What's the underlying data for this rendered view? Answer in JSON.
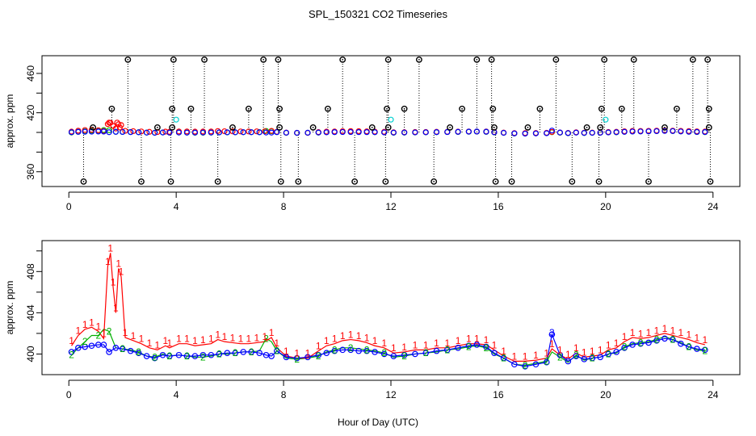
{
  "chart_data": {
    "type": "line",
    "title": "SPL_150321  CO2 Timeseries",
    "xlabel": "Hour of Day (UTC)",
    "colors": {
      "outlier": "#000000",
      "series1": "#ff0000",
      "series2": "#00b000",
      "series3": "#0000ff",
      "series4": "#00d0d0"
    },
    "panels": [
      {
        "ylabel": "approx. ppm",
        "xlim": [
          -1,
          25
        ],
        "ylim": [
          345,
          478
        ],
        "xticks": [
          0,
          4,
          8,
          12,
          16,
          20,
          24
        ],
        "yticks": [
          360,
          380,
          400,
          420,
          440,
          460
        ],
        "ytick_labels": [
          360,
          420,
          460
        ],
        "outlier_high_x": [
          2.2,
          3.9,
          5.05,
          7.25,
          7.8,
          10.2,
          11.9,
          13.05,
          15.2,
          15.75,
          18.15,
          19.95,
          21.05,
          23.25,
          23.8
        ],
        "outlier_high_y": 474,
        "outlier_mid_x": [
          1.6,
          3.85,
          4.55,
          6.7,
          7.85,
          9.65,
          11.85,
          12.5,
          14.65,
          15.8,
          17.55,
          19.85,
          20.6,
          22.65,
          23.85
        ],
        "outlier_mid_y": 424,
        "outlier_low_x": [
          0.55,
          2.7,
          3.8,
          5.55,
          7.9,
          8.55,
          10.65,
          11.8,
          13.6,
          15.9,
          16.5,
          18.75,
          19.75,
          21.6,
          23.9
        ],
        "outlier_low_y": 350,
        "outlier_near_x": [
          0.9,
          3.3,
          3.85,
          6.1,
          7.85,
          9.1,
          11.3,
          11.9,
          14.2,
          15.85,
          17.1,
          19.3,
          19.8,
          22.2,
          23.85
        ],
        "outlier_near_y": 405,
        "cyan_points": [
          {
            "x": 4.0,
            "y": 413
          },
          {
            "x": 12.0,
            "y": 413
          },
          {
            "x": 20.0,
            "y": 413
          }
        ],
        "red_extra": [
          {
            "x": 1.5,
            "y": 410
          },
          {
            "x": 1.8,
            "y": 410
          },
          {
            "x": 1.9,
            "y": 405
          }
        ]
      },
      {
        "ylabel": "approx. ppm",
        "xlim": [
          -1,
          25
        ],
        "ylim": [
          398,
          411
        ],
        "xticks": [
          0,
          4,
          8,
          12,
          16,
          20,
          24
        ],
        "yticks": [
          400,
          402,
          404,
          406,
          408,
          410
        ],
        "ytick_labels": [
          400,
          404,
          408
        ],
        "marker_label_1": "1",
        "marker_label_2": "2",
        "marker_label_3": "3"
      }
    ],
    "series": [
      {
        "name": "1",
        "x": [
          0.1,
          0.35,
          0.6,
          0.85,
          1.1,
          1.3,
          1.45,
          1.55,
          1.65,
          1.75,
          1.85,
          1.95,
          2.1,
          2.4,
          2.7,
          3.0,
          3.3,
          3.6,
          3.75,
          4.1,
          4.4,
          4.7,
          5.0,
          5.3,
          5.55,
          5.8,
          6.1,
          6.4,
          6.7,
          7.0,
          7.3,
          7.55,
          7.75,
          8.1,
          8.5,
          8.9,
          9.3,
          9.6,
          9.9,
          10.2,
          10.5,
          10.8,
          11.1,
          11.4,
          11.75,
          12.1,
          12.5,
          12.9,
          13.3,
          13.7,
          14.1,
          14.5,
          14.9,
          15.2,
          15.55,
          15.85,
          16.2,
          16.6,
          17.0,
          17.4,
          17.8,
          18.0,
          18.3,
          18.6,
          18.9,
          19.2,
          19.5,
          19.8,
          20.1,
          20.4,
          20.7,
          21.0,
          21.3,
          21.6,
          21.9,
          22.2,
          22.5,
          22.8,
          23.1,
          23.4,
          23.7
        ],
        "values": [
          400.8,
          401.8,
          402.4,
          402.6,
          402.2,
          401.5,
          408.5,
          409.8,
          406.5,
          404.0,
          408.3,
          407.5,
          401.6,
          401.3,
          401.0,
          400.6,
          400.4,
          400.8,
          400.6,
          401.0,
          401.0,
          400.8,
          400.9,
          401.0,
          401.4,
          401.2,
          401.1,
          401.0,
          401.0,
          401.1,
          401.2,
          401.6,
          400.6,
          399.8,
          399.6,
          399.6,
          400.3,
          400.8,
          401.0,
          401.3,
          401.4,
          401.3,
          401.1,
          400.8,
          400.6,
          400.1,
          400.2,
          400.4,
          400.4,
          400.6,
          400.6,
          400.8,
          401.0,
          401.0,
          400.9,
          400.4,
          399.8,
          399.3,
          399.3,
          399.4,
          399.6,
          400.5,
          399.9,
          399.5,
          400.1,
          399.7,
          399.8,
          399.9,
          400.4,
          400.6,
          401.2,
          401.6,
          401.5,
          401.6,
          401.8,
          402.0,
          401.8,
          401.6,
          401.4,
          401.1,
          400.9
        ]
      },
      {
        "name": "2",
        "x": [
          0.1,
          0.35,
          0.6,
          0.85,
          1.1,
          1.3,
          1.5,
          1.75,
          2.0,
          2.3,
          2.6,
          2.9,
          3.2,
          3.5,
          3.75,
          4.1,
          4.4,
          4.7,
          5.0,
          5.3,
          5.6,
          5.9,
          6.2,
          6.5,
          6.8,
          7.1,
          7.35,
          7.55,
          7.75,
          8.1,
          8.5,
          8.9,
          9.3,
          9.6,
          9.9,
          10.2,
          10.5,
          10.8,
          11.1,
          11.4,
          11.75,
          12.1,
          12.5,
          12.9,
          13.3,
          13.7,
          14.1,
          14.5,
          14.9,
          15.2,
          15.55,
          15.85,
          16.2,
          16.6,
          17.0,
          17.4,
          17.8,
          18.0,
          18.3,
          18.6,
          18.9,
          19.2,
          19.5,
          19.8,
          20.1,
          20.4,
          20.7,
          21.0,
          21.3,
          21.6,
          21.9,
          22.2,
          22.5,
          22.8,
          23.1,
          23.4,
          23.7
        ],
        "values": [
          399.9,
          400.6,
          401.2,
          401.8,
          401.8,
          402.4,
          402.2,
          400.6,
          400.5,
          400.4,
          400.2,
          399.8,
          399.7,
          400.0,
          399.8,
          399.9,
          399.8,
          399.7,
          399.7,
          399.8,
          400.0,
          400.0,
          400.1,
          400.2,
          400.2,
          400.3,
          401.5,
          401.2,
          400.3,
          399.6,
          399.5,
          399.6,
          399.8,
          400.2,
          400.4,
          400.6,
          400.6,
          400.5,
          400.4,
          400.3,
          400.1,
          399.7,
          399.8,
          400.0,
          400.1,
          400.2,
          400.4,
          400.5,
          400.7,
          400.8,
          400.6,
          400.0,
          399.6,
          399.0,
          398.9,
          399.1,
          399.3,
          400.2,
          399.7,
          399.2,
          399.9,
          399.4,
          399.6,
          399.7,
          400.0,
          400.1,
          400.7,
          401.0,
          401.1,
          401.2,
          401.4,
          401.7,
          401.4,
          401.1,
          400.7,
          400.4,
          400.3
        ]
      },
      {
        "name": "3",
        "x": [
          0.1,
          0.35,
          0.6,
          0.85,
          1.1,
          1.3,
          1.5,
          1.75,
          2.0,
          2.3,
          2.6,
          2.9,
          3.2,
          3.5,
          3.75,
          4.1,
          4.4,
          4.7,
          5.0,
          5.3,
          5.6,
          5.9,
          6.2,
          6.5,
          6.8,
          7.1,
          7.35,
          7.55,
          7.75,
          8.1,
          8.5,
          8.9,
          9.3,
          9.6,
          9.9,
          10.2,
          10.5,
          10.8,
          11.1,
          11.4,
          11.75,
          12.1,
          12.5,
          12.9,
          13.3,
          13.7,
          14.1,
          14.5,
          14.9,
          15.2,
          15.55,
          15.85,
          16.2,
          16.6,
          17.0,
          17.4,
          17.8,
          18.0,
          18.3,
          18.6,
          18.9,
          19.2,
          19.5,
          19.8,
          20.1,
          20.4,
          20.7,
          21.0,
          21.3,
          21.6,
          21.9,
          22.2,
          22.5,
          22.8,
          23.1,
          23.4,
          23.7
        ],
        "values": [
          400.2,
          400.6,
          400.7,
          400.8,
          400.9,
          400.9,
          400.2,
          400.6,
          400.5,
          400.3,
          400.1,
          399.8,
          399.6,
          399.9,
          399.8,
          399.9,
          399.8,
          399.8,
          399.9,
          399.9,
          400.0,
          400.1,
          400.1,
          400.2,
          400.2,
          400.1,
          399.9,
          399.8,
          400.3,
          399.7,
          399.6,
          399.7,
          399.9,
          400.1,
          400.3,
          400.4,
          400.4,
          400.3,
          400.3,
          400.2,
          400.0,
          399.8,
          399.9,
          400.0,
          400.1,
          400.3,
          400.4,
          400.6,
          400.8,
          400.9,
          400.7,
          400.1,
          399.6,
          399.0,
          398.8,
          399.0,
          399.2,
          401.9,
          399.9,
          399.3,
          399.8,
          399.5,
          399.6,
          399.7,
          400.0,
          400.2,
          400.6,
          400.9,
          401.0,
          401.1,
          401.3,
          401.5,
          401.4,
          401.0,
          400.7,
          400.5,
          400.4
        ]
      }
    ]
  }
}
